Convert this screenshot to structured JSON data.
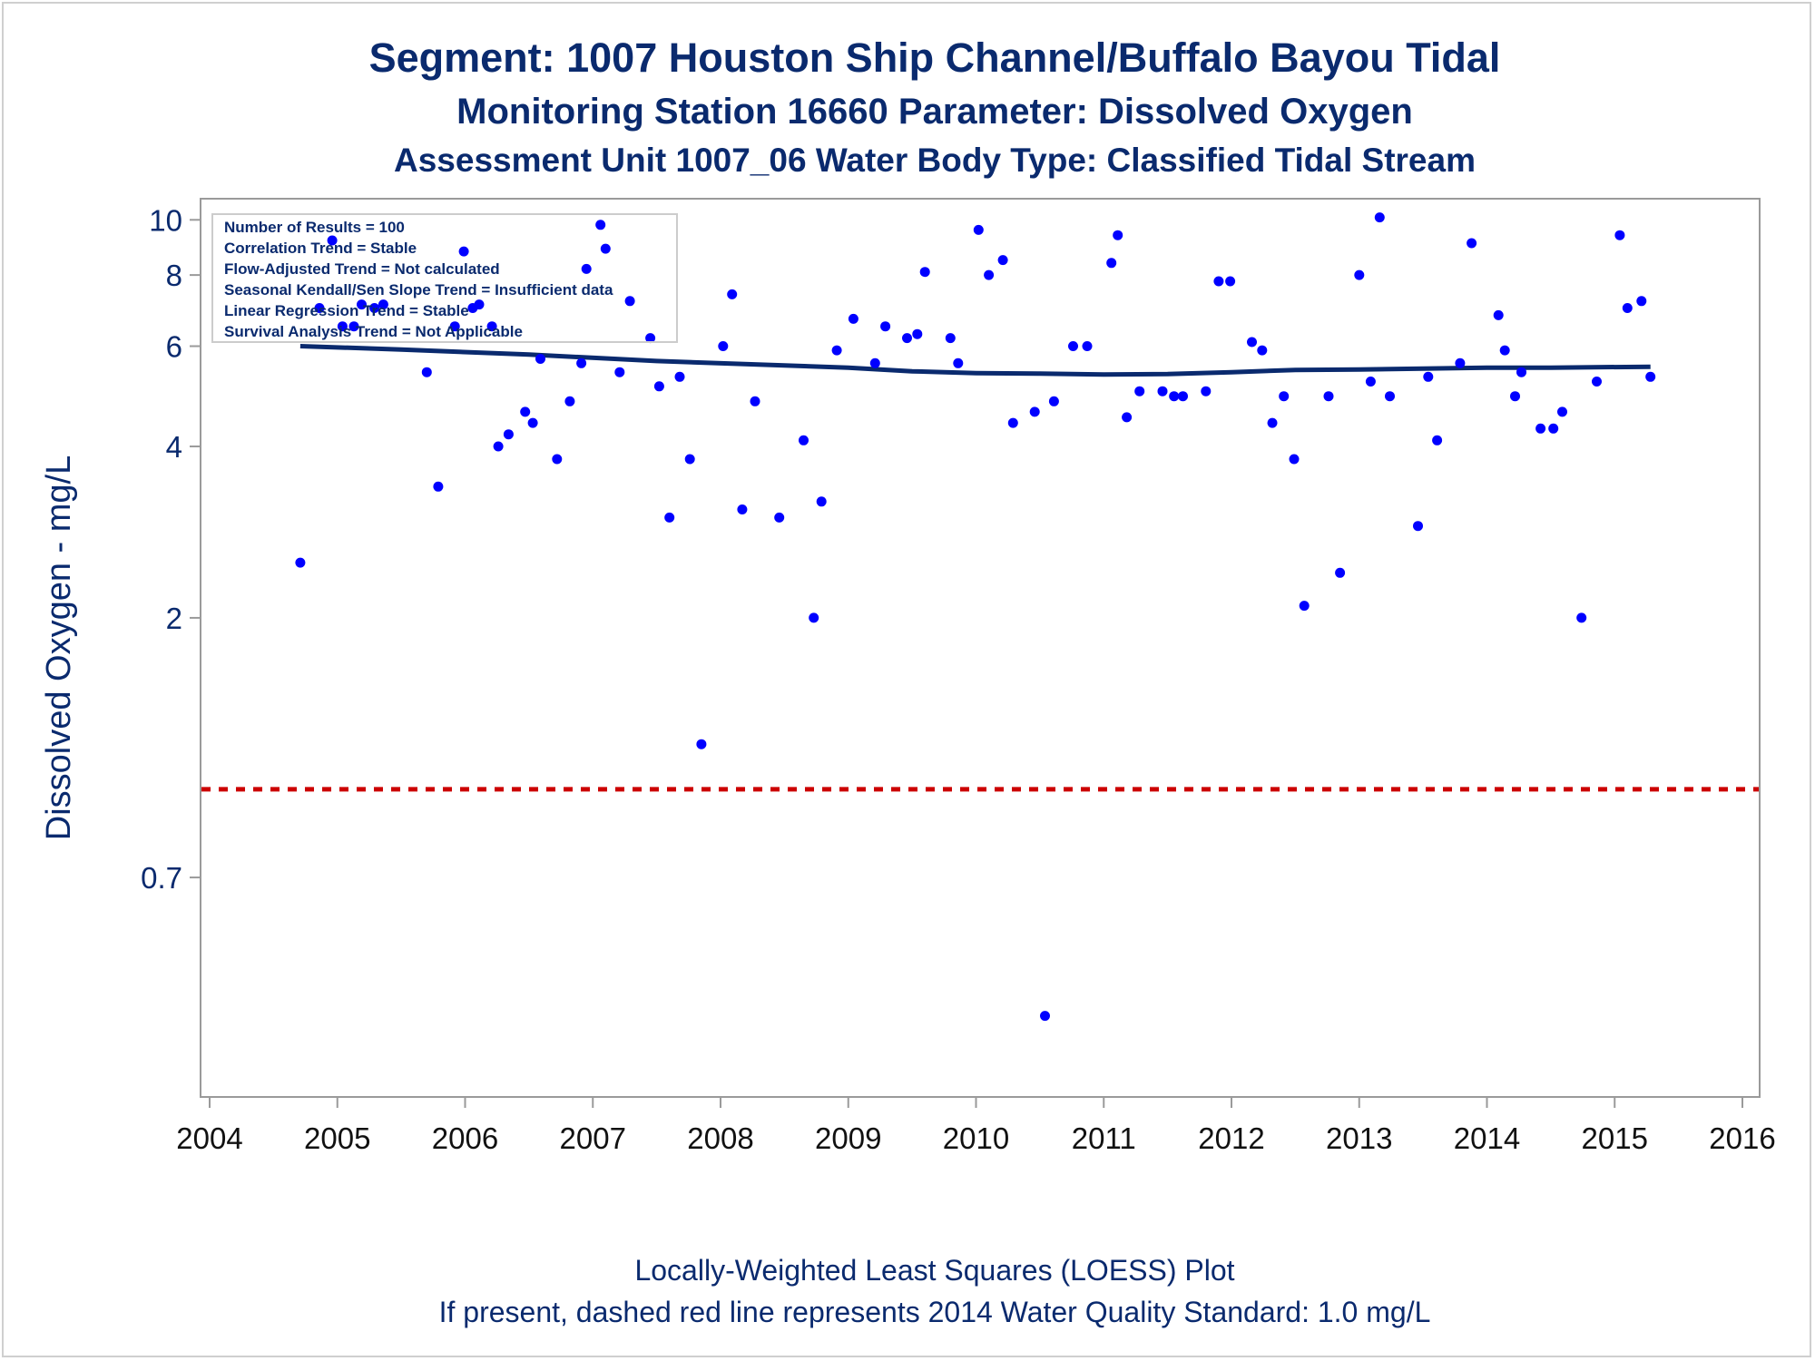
{
  "titles": {
    "line1": "Segment: 1007  Houston Ship Channel/Buffalo Bayou Tidal",
    "line2": "Monitoring Station 16660 Parameter: Dissolved Oxygen",
    "line3": "Assessment Unit 1007_06   Water Body Type: Classified Tidal Stream"
  },
  "footnotes": {
    "line1": "Locally-Weighted Least Squares (LOESS) Plot",
    "line2": "If present, dashed red line represents 2014 Water Quality Standard: 1.0 mg/L"
  },
  "legend_lines": [
    "Number of Results = 100",
    "Correlation Trend = Stable",
    "Flow-Adjusted Trend = Not calculated",
    "Seasonal Kendall/Sen Slope Trend = Insufficient data",
    "Linear Regression Trend = Stable",
    "Survival Analysis Trend = Not Applicable"
  ],
  "colors": {
    "points": "#0000ff",
    "loess": "#0a2a6e",
    "standard_line": "#cc0000",
    "text": "#0a2a6e",
    "axis": "#9a9a9a"
  },
  "chart_data": {
    "type": "scatter",
    "title": "Segment: 1007  Houston Ship Channel/Buffalo Bayou Tidal",
    "xlabel": "",
    "ylabel": "Dissolved Oxygen - mg/L",
    "y_scale": "log",
    "xlim": [
      2004,
      2016
    ],
    "ylim": [
      0.3,
      10.5
    ],
    "x_ticks": [
      "2004",
      "2005",
      "2006",
      "2007",
      "2008",
      "2009",
      "2010",
      "2011",
      "2012",
      "2013",
      "2014",
      "2015",
      "2016"
    ],
    "y_ticks": [
      "0.7",
      "2",
      "4",
      "6",
      "8",
      "10"
    ],
    "y_tick_values": [
      0.7,
      2,
      4,
      6,
      8,
      10
    ],
    "grid": false,
    "legend_position": "top-left",
    "standard_line": {
      "value": 1.0,
      "style": "dashed"
    },
    "series": [
      {
        "type": "scatter",
        "points": [
          [
            2004.71,
            2.5
          ],
          [
            2004.86,
            7.0
          ],
          [
            2004.96,
            9.2
          ],
          [
            2005.04,
            6.5
          ],
          [
            2005.13,
            6.5
          ],
          [
            2005.19,
            7.1
          ],
          [
            2005.29,
            7.0
          ],
          [
            2005.36,
            7.1
          ],
          [
            2005.7,
            5.4
          ],
          [
            2005.79,
            3.4
          ],
          [
            2005.92,
            6.5
          ],
          [
            2005.99,
            8.8
          ],
          [
            2006.06,
            7.0
          ],
          [
            2006.11,
            7.1
          ],
          [
            2006.21,
            6.5
          ],
          [
            2006.26,
            4.0
          ],
          [
            2006.34,
            4.2
          ],
          [
            2006.47,
            4.6
          ],
          [
            2006.53,
            4.4
          ],
          [
            2006.59,
            5.7
          ],
          [
            2006.72,
            3.8
          ],
          [
            2006.82,
            4.8
          ],
          [
            2006.91,
            5.6
          ],
          [
            2006.95,
            8.2
          ],
          [
            2007.06,
            9.8
          ],
          [
            2007.1,
            8.9
          ],
          [
            2007.21,
            5.4
          ],
          [
            2007.29,
            7.2
          ],
          [
            2007.45,
            6.2
          ],
          [
            2007.52,
            5.1
          ],
          [
            2007.6,
            3.0
          ],
          [
            2007.68,
            5.3
          ],
          [
            2007.76,
            3.8
          ],
          [
            2007.85,
            1.2
          ],
          [
            2008.02,
            6.0
          ],
          [
            2008.09,
            7.4
          ],
          [
            2008.17,
            3.1
          ],
          [
            2008.27,
            4.8
          ],
          [
            2008.46,
            3.0
          ],
          [
            2008.65,
            4.1
          ],
          [
            2008.73,
            2.0
          ],
          [
            2008.79,
            3.2
          ],
          [
            2008.91,
            5.9
          ],
          [
            2009.04,
            6.7
          ],
          [
            2009.21,
            5.6
          ],
          [
            2009.29,
            6.5
          ],
          [
            2009.46,
            6.2
          ],
          [
            2009.54,
            6.3
          ],
          [
            2009.6,
            8.1
          ],
          [
            2009.8,
            6.2
          ],
          [
            2009.86,
            5.6
          ],
          [
            2010.02,
            9.6
          ],
          [
            2010.1,
            8.0
          ],
          [
            2010.21,
            8.5
          ],
          [
            2010.29,
            4.4
          ],
          [
            2010.46,
            4.6
          ],
          [
            2010.54,
            0.4
          ],
          [
            2010.61,
            4.8
          ],
          [
            2010.76,
            6.0
          ],
          [
            2010.87,
            6.0
          ],
          [
            2011.06,
            8.4
          ],
          [
            2011.11,
            9.4
          ],
          [
            2011.18,
            4.5
          ],
          [
            2011.28,
            5.0
          ],
          [
            2011.46,
            5.0
          ],
          [
            2011.55,
            4.9
          ],
          [
            2011.62,
            4.9
          ],
          [
            2011.8,
            5.0
          ],
          [
            2011.9,
            7.8
          ],
          [
            2011.99,
            7.8
          ],
          [
            2012.16,
            6.1
          ],
          [
            2012.24,
            5.9
          ],
          [
            2012.32,
            4.4
          ],
          [
            2012.41,
            4.9
          ],
          [
            2012.49,
            3.8
          ],
          [
            2012.57,
            2.1
          ],
          [
            2012.76,
            4.9
          ],
          [
            2012.85,
            2.4
          ],
          [
            2013.0,
            8.0
          ],
          [
            2013.09,
            5.2
          ],
          [
            2013.16,
            10.1
          ],
          [
            2013.24,
            4.9
          ],
          [
            2013.46,
            2.9
          ],
          [
            2013.54,
            5.3
          ],
          [
            2013.61,
            4.1
          ],
          [
            2013.79,
            5.6
          ],
          [
            2013.88,
            9.1
          ],
          [
            2014.09,
            6.8
          ],
          [
            2014.14,
            5.9
          ],
          [
            2014.22,
            4.9
          ],
          [
            2014.27,
            5.4
          ],
          [
            2014.42,
            4.3
          ],
          [
            2014.52,
            4.3
          ],
          [
            2014.59,
            4.6
          ],
          [
            2014.74,
            2.0
          ],
          [
            2014.86,
            5.2
          ],
          [
            2015.04,
            9.4
          ],
          [
            2015.1,
            7.0
          ],
          [
            2015.21,
            7.2
          ],
          [
            2015.28,
            5.3
          ]
        ]
      },
      {
        "type": "line",
        "points": [
          [
            2004.71,
            6.0
          ],
          [
            2005.5,
            5.92
          ],
          [
            2006.5,
            5.8
          ],
          [
            2007.5,
            5.65
          ],
          [
            2008.5,
            5.55
          ],
          [
            2009.0,
            5.5
          ],
          [
            2009.5,
            5.42
          ],
          [
            2010.0,
            5.38
          ],
          [
            2010.5,
            5.37
          ],
          [
            2011.0,
            5.35
          ],
          [
            2011.5,
            5.36
          ],
          [
            2012.0,
            5.4
          ],
          [
            2012.5,
            5.45
          ],
          [
            2013.0,
            5.46
          ],
          [
            2013.5,
            5.48
          ],
          [
            2014.0,
            5.5
          ],
          [
            2014.5,
            5.5
          ],
          [
            2015.28,
            5.52
          ]
        ]
      }
    ]
  }
}
